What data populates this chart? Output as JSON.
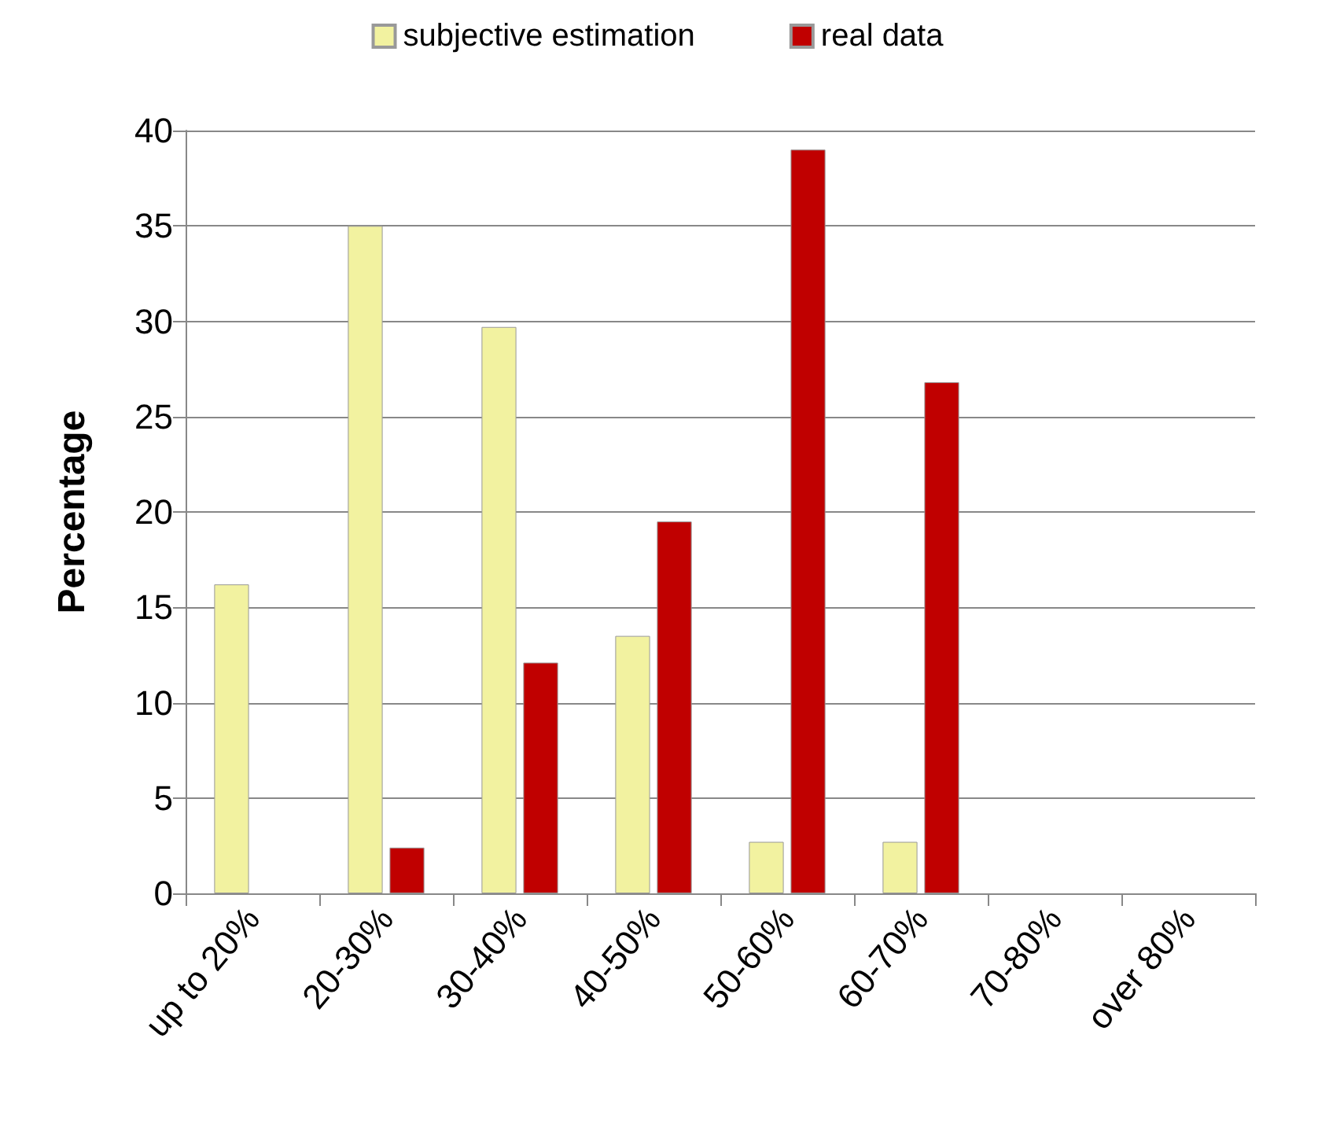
{
  "chart_data": {
    "type": "bar",
    "ylabel": "Percentage",
    "categories": [
      "up to 20%",
      "20-30%",
      "30-40%",
      "40-50%",
      "50-60%",
      "60-70%",
      "70-80%",
      "over 80%"
    ],
    "series": [
      {
        "name": "subjective estimation",
        "color": "#f2f2a0",
        "values": [
          16.2,
          35,
          29.7,
          13.5,
          2.7,
          2.7,
          null,
          null
        ]
      },
      {
        "name": "real data",
        "color": "#c00000",
        "values": [
          null,
          2.4,
          12.1,
          19.5,
          39,
          26.8,
          null,
          null
        ]
      }
    ],
    "ylim": [
      0,
      40
    ],
    "yticks": [
      0,
      5,
      10,
      15,
      20,
      25,
      30,
      35,
      40
    ],
    "grid": "y",
    "legend": "top"
  }
}
